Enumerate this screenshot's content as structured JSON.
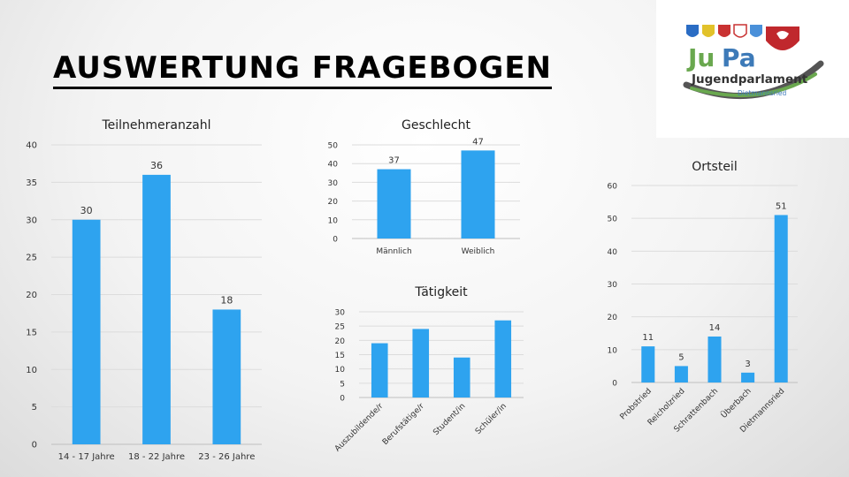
{
  "page": {
    "title": "AUSWERTUNG FRAGEBOGEN"
  },
  "logo": {
    "name_part1": "Ju",
    "name_part2": "Pa",
    "subtitle": "Jugendparlament",
    "town": "Dietmannsried",
    "colors": {
      "green": "#6aa84f",
      "blue": "#3d7ab8",
      "red": "#c0282d",
      "grey": "#555555"
    }
  },
  "colors": {
    "bar": "#2ea3ef",
    "grid": "#dcdcdc",
    "axis": "#bfbfbf",
    "text": "#333333"
  },
  "chart_data": [
    {
      "id": "teilnehmer",
      "type": "bar",
      "title": "Teilnehmeranzahl",
      "categories": [
        "14 - 17 Jahre",
        "18 - 22 Jahre",
        "23 - 26 Jahre"
      ],
      "values": [
        30,
        36,
        18
      ],
      "ylim": [
        0,
        40
      ],
      "yticks": [
        0,
        5,
        10,
        15,
        20,
        25,
        30,
        35,
        40
      ],
      "grid": true,
      "data_labels": true,
      "rotate_labels": false
    },
    {
      "id": "geschlecht",
      "type": "bar",
      "title": "Geschlecht",
      "categories": [
        "Männlich",
        "Weiblich"
      ],
      "values": [
        37,
        47
      ],
      "ylim": [
        0,
        50
      ],
      "yticks": [
        0,
        10,
        20,
        30,
        40,
        50
      ],
      "grid": true,
      "data_labels": true,
      "rotate_labels": false
    },
    {
      "id": "taetigkeit",
      "type": "bar",
      "title": "Tätigkeit",
      "categories": [
        "Auszubildende/r",
        "Berufstätige/r",
        "Student/in",
        "Schüler/in"
      ],
      "values": [
        19,
        24,
        14,
        27
      ],
      "ylim": [
        0,
        30
      ],
      "yticks": [
        0,
        5,
        10,
        15,
        20,
        25,
        30
      ],
      "grid": true,
      "data_labels": false,
      "rotate_labels": true
    },
    {
      "id": "ortsteil",
      "type": "bar",
      "title": "Ortsteil",
      "categories": [
        "Probstried",
        "Reicholzried",
        "Schrattenbach",
        "Überbach",
        "Dietmannsried"
      ],
      "values": [
        11,
        5,
        14,
        3,
        51
      ],
      "ylim": [
        0,
        60
      ],
      "yticks": [
        0,
        10,
        20,
        30,
        40,
        50,
        60
      ],
      "grid": true,
      "data_labels": true,
      "rotate_labels": true
    }
  ]
}
